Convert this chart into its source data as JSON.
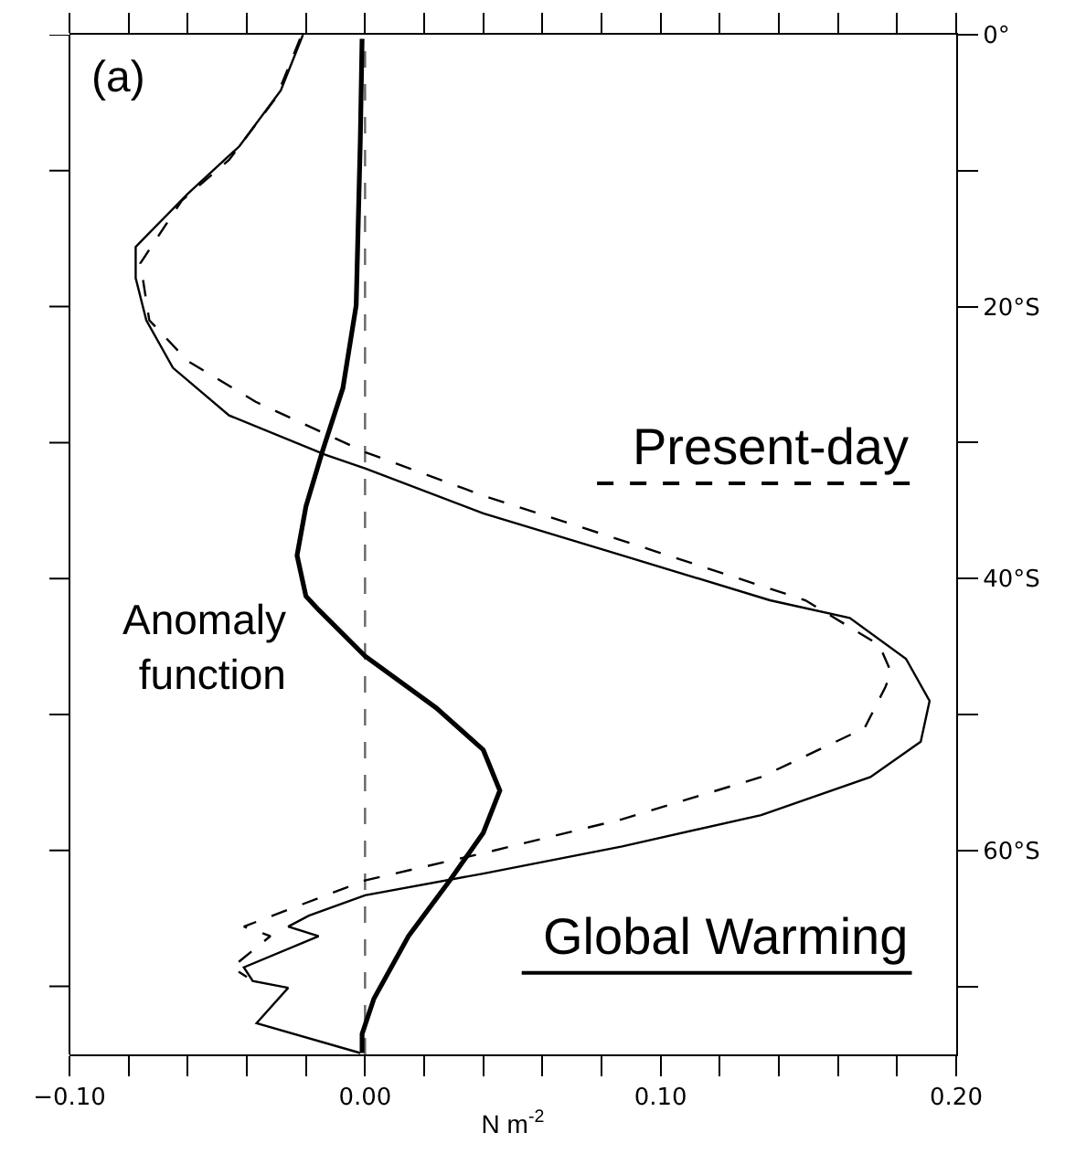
{
  "chart_data": {
    "type": "line",
    "xlabel": "N m$^{-2}$",
    "annotations": [
      "(a)"
    ],
    "xlim": [
      -0.1,
      0.2
    ],
    "xticks": [
      {
        "value": -0.1,
        "label": "−0.10"
      },
      {
        "value": -0.08,
        "label": null
      },
      {
        "value": -0.06,
        "label": null
      },
      {
        "value": -0.04,
        "label": null
      },
      {
        "value": -0.02,
        "label": null
      },
      {
        "value": 0,
        "label": "0.00"
      },
      {
        "value": 0.02,
        "label": null
      },
      {
        "value": 0.04,
        "label": null
      },
      {
        "value": 0.06,
        "label": null
      },
      {
        "value": 0.08,
        "label": null
      },
      {
        "value": 0.1,
        "label": "0.10"
      },
      {
        "value": 0.12,
        "label": null
      },
      {
        "value": 0.14,
        "label": null
      },
      {
        "value": 0.16,
        "label": null
      },
      {
        "value": 0.18,
        "label": null
      },
      {
        "value": 0.2,
        "label": "0.20"
      }
    ],
    "ylim": [
      -75,
      0
    ],
    "yticks": [
      {
        "value": 0,
        "label": "0°"
      },
      {
        "value": -10,
        "label": null
      },
      {
        "value": -20,
        "label": "20°S"
      },
      {
        "value": -30,
        "label": null
      },
      {
        "value": -40,
        "label": "40°S"
      },
      {
        "value": -50,
        "label": null
      },
      {
        "value": -60,
        "label": "60°S"
      },
      {
        "value": -70,
        "label": null
      }
    ],
    "ref_lines": [
      {
        "axis": "x",
        "value": 0,
        "color": "#666666",
        "line_style": "dashed"
      }
    ],
    "grid": false,
    "legend": false,
    "marker": "none",
    "series": [
      {
        "name": "Global Warming",
        "color": "#000000",
        "line_style": "solid",
        "x": [
          -0.021,
          -0.0285,
          -0.0425,
          -0.06,
          -0.0776,
          -0.0776,
          -0.074,
          -0.065,
          -0.046,
          -0.0133,
          0,
          0.04,
          0.087,
          0.137,
          0.164,
          0.183,
          0.191,
          0.188,
          0.171,
          0.134,
          0.087,
          0.04,
          0,
          -0.019,
          -0.026,
          -0.0157,
          -0.041,
          -0.038,
          -0.026,
          -0.0367,
          -0.0016
        ],
        "values": [
          0,
          -4.1,
          -8.2,
          -11.7,
          -15.6,
          -17.9,
          -21,
          -24.5,
          -28,
          -30.9,
          -31.9,
          -35.2,
          -38.3,
          -41.6,
          -42.9,
          -45.9,
          -49,
          -52,
          -54.6,
          -57.4,
          -59.7,
          -61.7,
          -63.3,
          -64.8,
          -65.6,
          -66.3,
          -68.6,
          -69.6,
          -70.1,
          -72.7,
          -74.9
        ]
      },
      {
        "name": "Present-day",
        "color": "#000000",
        "line_style": "dashed",
        "x": [
          -0.022,
          -0.03,
          -0.046,
          -0.062,
          -0.076,
          -0.073,
          -0.06,
          -0.037,
          0,
          0.04,
          0.087,
          0.149,
          0.174,
          0.178,
          0.176,
          0.169,
          0.134,
          0.087,
          0.04,
          0,
          -0.041,
          -0.032,
          -0.045,
          -0.04
        ],
        "values": [
          -0.3,
          -4.6,
          -9.2,
          -12.2,
          -16.8,
          -21,
          -24,
          -27,
          -30.7,
          -33.9,
          -37.2,
          -41.6,
          -44.9,
          -46.9,
          -48,
          -51,
          -54.6,
          -57.7,
          -60.2,
          -62.2,
          -65.6,
          -66.3,
          -68.6,
          -69.3
        ]
      },
      {
        "name": "Anomaly function",
        "color": "#000000",
        "line_style": "solid",
        "x": [
          -0.001,
          -0.0016,
          -0.003,
          -0.0075,
          -0.0145,
          -0.02,
          -0.023,
          -0.02,
          -0.0157,
          0,
          0.024,
          0.04,
          0.0456,
          0.04,
          0.0287,
          0.0147,
          0.003,
          -0.001,
          -0.001
        ],
        "values": [
          -0.3,
          -7.7,
          -19.9,
          -26,
          -30.7,
          -34.7,
          -38.3,
          -41.3,
          -42.3,
          -45.7,
          -49.5,
          -52.6,
          -55.6,
          -58.7,
          -62.2,
          -66.3,
          -70.9,
          -73.5,
          -74.9
        ]
      }
    ]
  }
}
